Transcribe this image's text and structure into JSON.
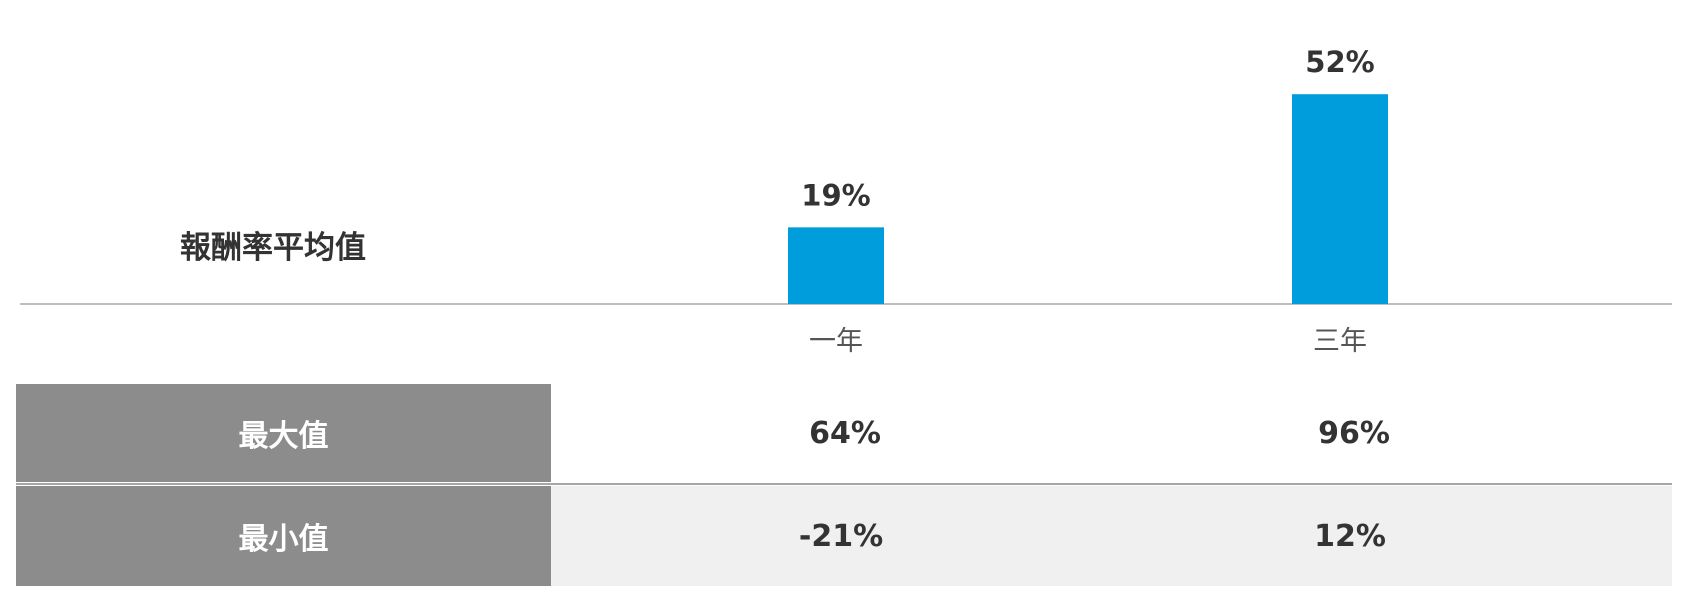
{
  "chart_data": {
    "type": "bar",
    "label": "報酬率平均值",
    "categories": [
      "一年",
      "三年"
    ],
    "values": [
      19,
      52
    ],
    "value_labels": [
      "19%",
      "52%"
    ],
    "ylim": [
      0,
      58
    ],
    "grid": false,
    "legend": "none",
    "colors": {
      "bar": "#009ddc",
      "axis": "#bfbfbf",
      "text": "#333333",
      "category_text": "#555555"
    }
  },
  "table": {
    "rows": [
      {
        "label": "最大值",
        "values": [
          "64%",
          "96%"
        ]
      },
      {
        "label": "最小值",
        "values": [
          "-21%",
          "12%"
        ]
      }
    ],
    "colors": {
      "header_bg": "#8c8c8c",
      "alt_row_bg": "#f0f0f0"
    }
  }
}
